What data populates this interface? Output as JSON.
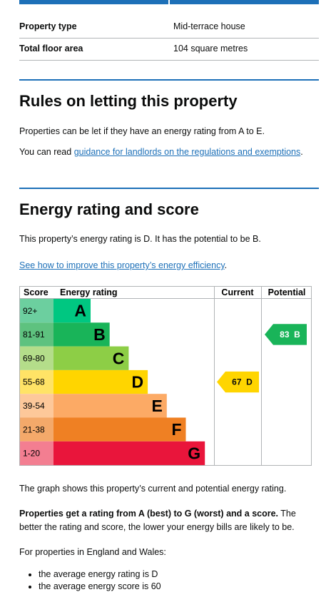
{
  "summary": {
    "rows": [
      [
        "Property type",
        "Mid-terrace house"
      ],
      [
        "Total floor area",
        "104 square metres"
      ]
    ]
  },
  "rules": {
    "heading": "Rules on letting this property",
    "paragraph": "Properties can be let if they have an energy rating from A to E.",
    "link_prefix": "You can read ",
    "link": "guidance for landlords on the regulations and exemptions",
    "link_suffix": "."
  },
  "energy": {
    "heading": "Energy rating and score",
    "paragraph": "This property’s energy rating is D. It has the potential to be B.",
    "link": "See how to improve this property’s energy efficiency",
    "link_suffix": "."
  },
  "chart": {
    "headers": [
      "Score",
      "Energy rating",
      "Current",
      "Potential"
    ],
    "bands": [
      {
        "score": "92+",
        "rating": "A",
        "color": "#00c781",
        "tint": "#6ccf9f"
      },
      {
        "score": "81-91",
        "rating": "B",
        "color": "#19b459",
        "tint": "#5ec27f"
      },
      {
        "score": "69-80",
        "rating": "C",
        "color": "#8dce46",
        "tint": "#b4dd8a"
      },
      {
        "score": "55-68",
        "rating": "D",
        "color": "#ffd500",
        "tint": "#ffe366"
      },
      {
        "score": "39-54",
        "rating": "E",
        "color": "#fcaa65",
        "tint": "#fdc89a"
      },
      {
        "score": "21-38",
        "rating": "F",
        "color": "#ef8023",
        "tint": "#f4a96a"
      },
      {
        "score": "1-20",
        "rating": "G",
        "color": "#e9153b",
        "tint": "#f37e91"
      }
    ],
    "current": {
      "score": "67",
      "rating": "D"
    },
    "potential": {
      "score": "83",
      "rating": "B"
    }
  },
  "footer": {
    "paragraph": "The graph shows this property’s current and potential energy rating.",
    "bold": "Properties get a rating from A (best) to G (worst) and a score.",
    "rest": " The better the rating and score, the lower your energy bills are likely to be.",
    "intro": "For properties in England and Wales:",
    "bullets": [
      "the average energy rating is D",
      "the average energy score is 60"
    ]
  }
}
